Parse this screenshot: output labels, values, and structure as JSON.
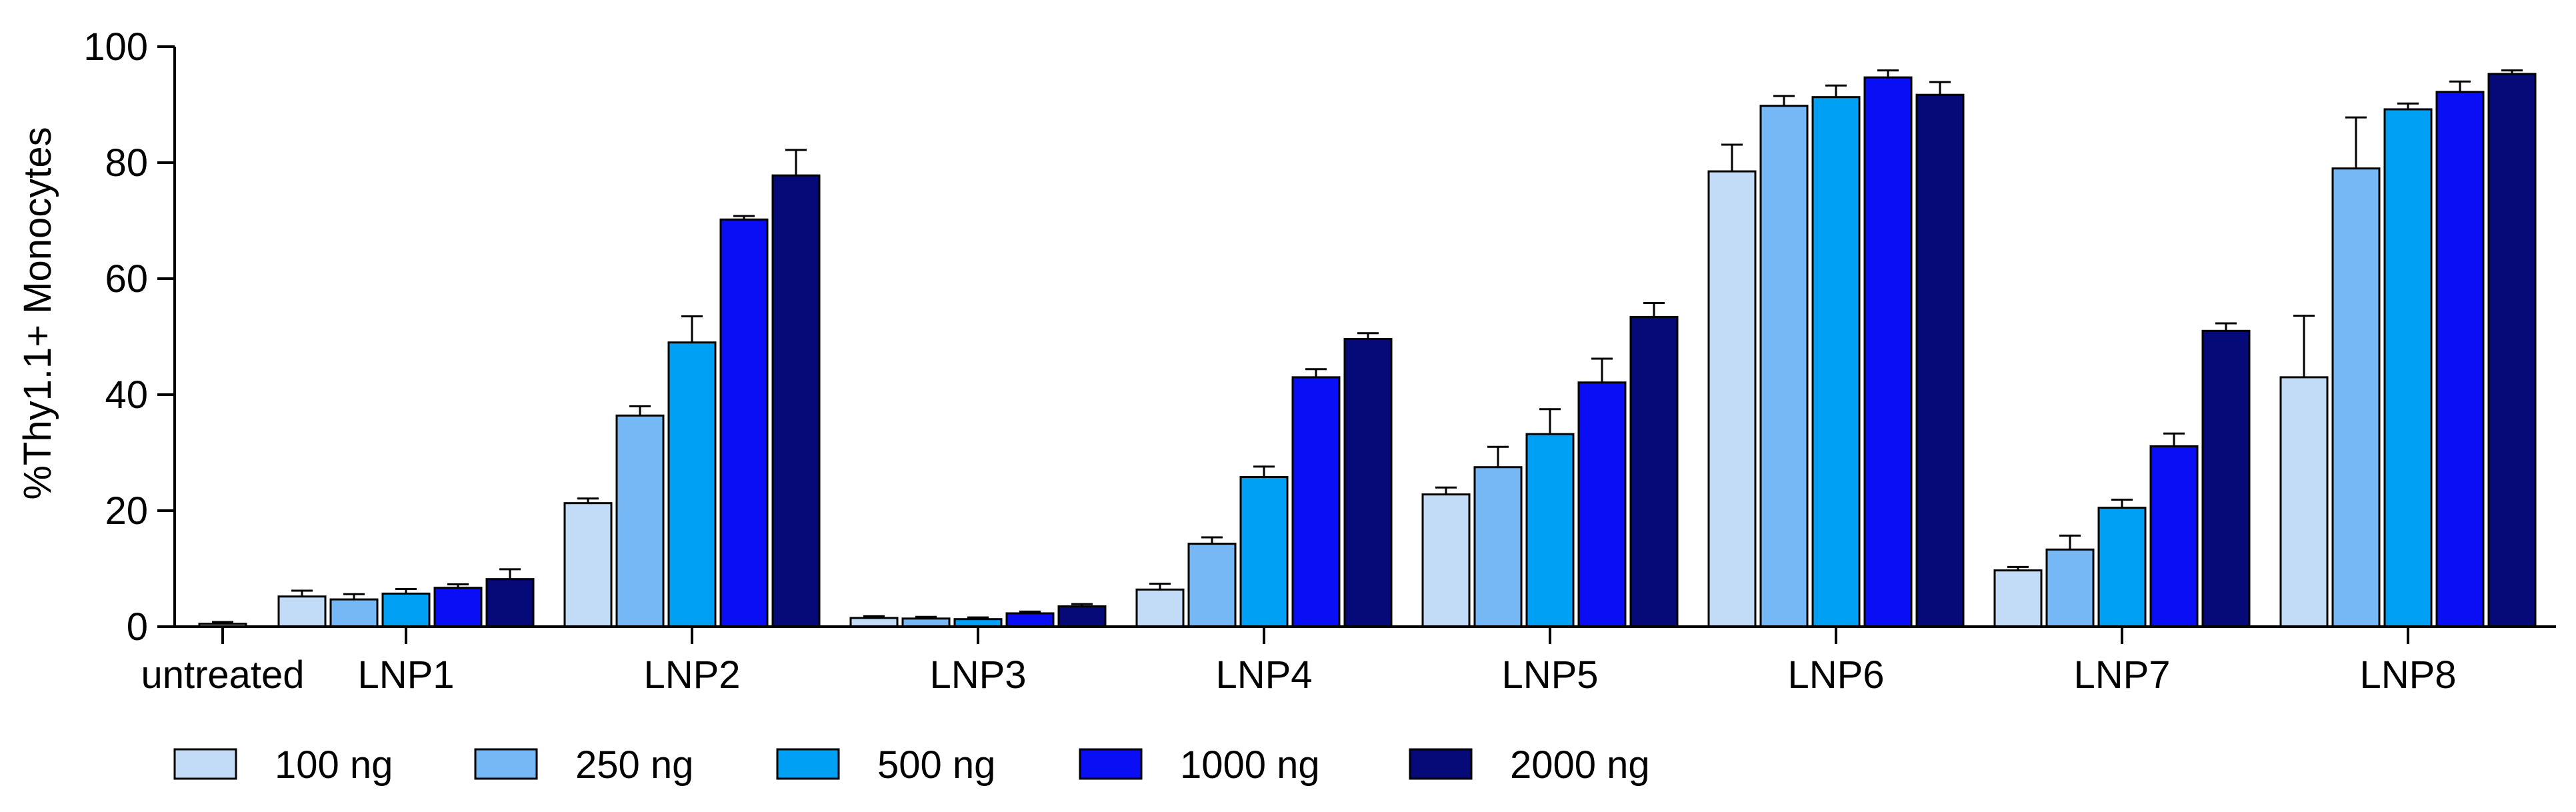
{
  "chart_data": {
    "type": "bar",
    "title": "",
    "xlabel": "",
    "ylabel": "%Thy1.1+ Monocytes",
    "ylim": [
      0,
      100
    ],
    "yticks": [
      0,
      20,
      40,
      60,
      80,
      100
    ],
    "grid": false,
    "legend_position": "bottom",
    "categories": [
      "untreated",
      "LNP1",
      "LNP2",
      "LNP3",
      "LNP4",
      "LNP5",
      "LNP6",
      "LNP7",
      "LNP8"
    ],
    "series": [
      {
        "name": "100 ng",
        "color": "#c2dcf7",
        "values": [
          null,
          5.2,
          21.3,
          1.5,
          6.4,
          22.8,
          78.5,
          9.7,
          43.0
        ],
        "errors": [
          null,
          1.0,
          0.8,
          0.3,
          1.0,
          1.2,
          4.6,
          0.6,
          10.6
        ]
      },
      {
        "name": "250 ng",
        "color": "#76b8f5",
        "values": [
          null,
          4.7,
          36.4,
          1.4,
          14.3,
          27.5,
          89.8,
          13.3,
          79.0
        ],
        "errors": [
          null,
          0.9,
          1.6,
          0.3,
          1.1,
          3.5,
          1.7,
          2.4,
          8.8
        ]
      },
      {
        "name": "500 ng",
        "color": "#00a0f4",
        "values": [
          null,
          5.7,
          49.0,
          1.3,
          25.8,
          33.2,
          91.3,
          20.5,
          89.2
        ],
        "errors": [
          null,
          0.8,
          4.5,
          0.3,
          1.8,
          4.3,
          2.0,
          1.4,
          1.0
        ]
      },
      {
        "name": "1000 ng",
        "color": "#0a0ef5",
        "values": [
          null,
          6.7,
          70.2,
          2.3,
          43.0,
          42.1,
          94.7,
          31.1,
          92.2
        ],
        "errors": [
          null,
          0.6,
          0.6,
          0.3,
          1.4,
          4.1,
          1.2,
          2.2,
          1.8
        ]
      },
      {
        "name": "2000 ng",
        "color": "#050a78",
        "values": [
          null,
          8.2,
          77.8,
          3.5,
          49.6,
          53.4,
          91.7,
          51.0,
          95.3
        ],
        "errors": [
          null,
          1.7,
          4.4,
          0.4,
          1.0,
          2.4,
          2.2,
          1.3,
          0.6
        ]
      }
    ],
    "untreated": {
      "value": 0.5,
      "error": 0.3
    }
  }
}
